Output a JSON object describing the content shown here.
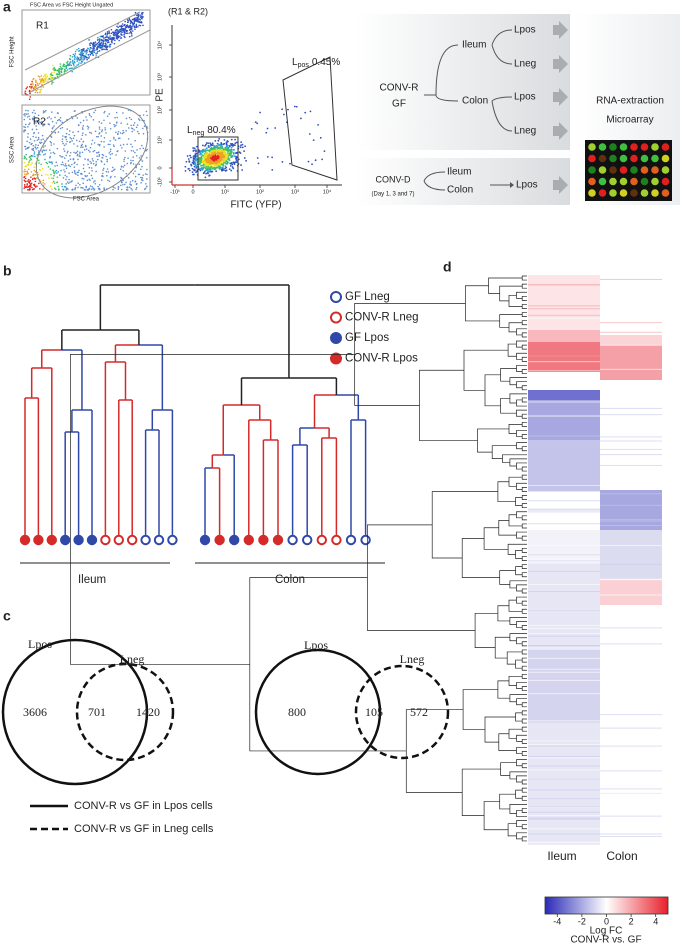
{
  "panel_labels": [
    "a",
    "b",
    "c",
    "d"
  ],
  "flow": {
    "plot1_title": "FSC Area vs FSC Height Ungated",
    "r1": "R1",
    "plot1_y_label": "FSC Height",
    "r2": "R2",
    "plot2_y_label": "SSC Area",
    "plot2_x_label": "FSC Area",
    "gate_title": "(R1 & R2)",
    "y_label": "PE",
    "x_label": "FITC (YFP)",
    "yticks": [
      "10⁴",
      "10³",
      "10²",
      "10¹",
      "0",
      "-10¹"
    ],
    "xticks": [
      "-10¹",
      "0",
      "10¹",
      "10²",
      "10³",
      "10⁴"
    ],
    "lneg": {
      "letter": "L",
      "sub": "neg",
      "pct": "80.4%"
    },
    "lpos": {
      "letter": "L",
      "sub": "pos",
      "pct": "0.45%"
    }
  },
  "scheme": {
    "conv_r": "CONV-R",
    "gf": "GF",
    "ileum": "Ileum",
    "colon": "Colon",
    "outputs": [
      "Lpos",
      "Lneg",
      "Lpos",
      "Lneg"
    ],
    "conv_d": "CONV-D",
    "days": "(Day 1, 3 and 7)",
    "d_ileum": "Ileum",
    "d_colon": "Colon",
    "d_output": "Lpos",
    "rna": "RNA-extraction",
    "microarray": "Microarray"
  },
  "dendrogram": {
    "legend": [
      "GF Lneg",
      "CONV-R Lneg",
      "GF Lpos",
      "CONV-R Lpos"
    ],
    "groups": [
      "Ileum",
      "Colon"
    ]
  },
  "venn": [
    {
      "left": "Lpos",
      "right": "Lneg",
      "only_left": 3606,
      "both": 701,
      "only_right": 1420
    },
    {
      "left": "Lpos",
      "right": "Lneg",
      "only_left": 800,
      "both": 105,
      "only_right": 572
    }
  ],
  "venn_legend": [
    "CONV-R vs GF in Lpos cells",
    "CONV-R vs GF in Lneg cells"
  ],
  "heatmap": {
    "columns": [
      "Ileum",
      "Colon"
    ],
    "colorbar_ticks": [
      -4,
      -2,
      0,
      2,
      4
    ],
    "colorbar_range": [
      -5,
      5
    ],
    "colorbar_title": "Log FC",
    "colorbar_subtitle": "CONV-R vs. GF"
  }
}
